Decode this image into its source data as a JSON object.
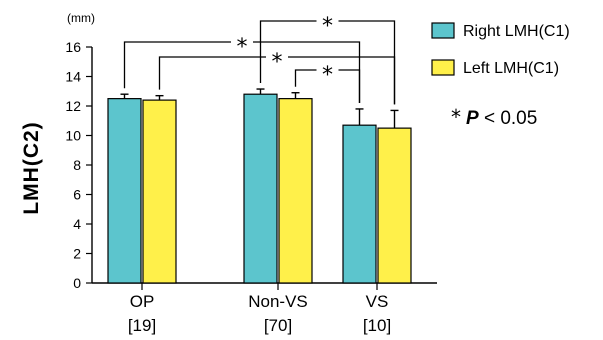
{
  "chart_data": {
    "type": "bar",
    "unit": "(mm)",
    "ylabel": "LMH(C2)",
    "ylim": [
      0,
      16
    ],
    "yticks": [
      0,
      2,
      4,
      6,
      8,
      10,
      12,
      14,
      16
    ],
    "categories": [
      {
        "name": "OP",
        "n": "[19]"
      },
      {
        "name": "Non-VS",
        "n": "[70]"
      },
      {
        "name": "VS",
        "n": "[10]"
      }
    ],
    "series": [
      {
        "name": "Right LMH(C1)",
        "color": "#5CC5CD",
        "values": [
          12.5,
          12.8,
          10.7
        ],
        "errors": [
          0.3,
          0.35,
          1.1
        ]
      },
      {
        "name": "Left LMH(C1)",
        "color": "#FFF04A",
        "values": [
          12.4,
          12.5,
          10.5
        ],
        "errors": [
          0.3,
          0.4,
          1.2
        ]
      }
    ],
    "significance": [
      {
        "from_category": 1,
        "from_series": 0,
        "to_category": 2,
        "to_series": 1,
        "label": "*"
      },
      {
        "from_category": 0,
        "from_series": 0,
        "to_category": 2,
        "to_series": 0,
        "label": "*"
      },
      {
        "from_category": 0,
        "from_series": 1,
        "to_category": 2,
        "to_series": 1,
        "label": "*"
      },
      {
        "from_category": 1,
        "from_series": 1,
        "to_category": 2,
        "to_series": 0,
        "label": "*"
      }
    ],
    "p_note": {
      "star": "*",
      "letter": "P",
      "rest": " < 0.05"
    },
    "legend_position": "right"
  }
}
